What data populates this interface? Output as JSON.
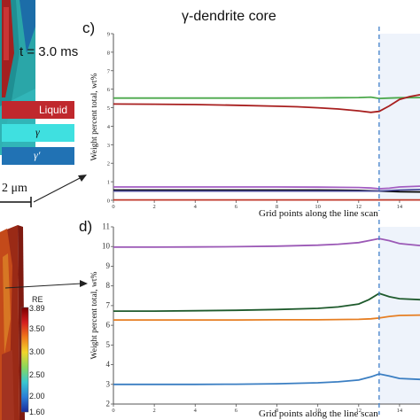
{
  "labels": {
    "title": "γ-dendrite core",
    "panel_c": "c)",
    "panel_d": "d)",
    "time": "t = 3.0 ms",
    "scale": "2 μm",
    "colorbar_title": "RE"
  },
  "legend": [
    {
      "label": "Liquid",
      "color": "#c0282d"
    },
    {
      "label": "γ",
      "color": "#3fe0e0"
    },
    {
      "label": "γ′",
      "color": "#2172b4"
    }
  ],
  "colorbar": {
    "ticks": [
      "3.89",
      "3.50",
      "3.00",
      "2.50",
      "2.00",
      "1.60"
    ],
    "colors": [
      "#7a0000",
      "#d41e1e",
      "#f07a1a",
      "#f2d52a",
      "#8ad85c",
      "#39c7d0",
      "#2b7dd6",
      "#1a2b9c"
    ]
  },
  "colors": {
    "vline": "#3f7fc9",
    "shade": "#eef3fb"
  },
  "chart_data": [
    {
      "type": "line",
      "panel": "c",
      "xlabel": "Grid points along the line scan",
      "ylabel": "Weight percent total, wt%",
      "xlim": [
        0,
        15
      ],
      "ylim": [
        0,
        9
      ],
      "xticks": [
        0,
        2,
        4,
        6,
        8,
        10,
        12,
        14
      ],
      "yticks": [
        0,
        1,
        2,
        3,
        4,
        5,
        6,
        7,
        8,
        9
      ],
      "vline_x": 13,
      "shade_from_x": 13,
      "series": [
        {
          "color": "#4aa84a",
          "x": [
            0,
            2,
            4,
            6,
            8,
            10,
            12,
            12.6,
            13,
            13.5,
            14,
            15
          ],
          "y": [
            5.52,
            5.52,
            5.52,
            5.52,
            5.52,
            5.53,
            5.55,
            5.57,
            5.5,
            5.52,
            5.54,
            5.55
          ]
        },
        {
          "color": "#a81f1f",
          "x": [
            0,
            2,
            4,
            6,
            8,
            9,
            10,
            11,
            12,
            12.6,
            13,
            13.5,
            14,
            14.5,
            15
          ],
          "y": [
            5.2,
            5.19,
            5.17,
            5.13,
            5.08,
            5.05,
            5.0,
            4.93,
            4.83,
            4.75,
            4.8,
            5.1,
            5.45,
            5.6,
            5.7
          ]
        },
        {
          "color": "#a35dc2",
          "x": [
            0,
            2,
            4,
            6,
            8,
            10,
            12,
            12.6,
            13,
            13.5,
            14,
            15
          ],
          "y": [
            0.72,
            0.72,
            0.72,
            0.72,
            0.72,
            0.71,
            0.69,
            0.66,
            0.62,
            0.65,
            0.72,
            0.76
          ]
        },
        {
          "color": "#000000",
          "x": [
            0,
            2,
            4,
            6,
            8,
            10,
            12,
            13,
            14,
            15
          ],
          "y": [
            0.55,
            0.55,
            0.55,
            0.55,
            0.55,
            0.55,
            0.53,
            0.5,
            0.46,
            0.45
          ]
        },
        {
          "color": "#4c4c9a",
          "x": [
            0,
            4,
            8,
            12,
            13,
            14,
            15
          ],
          "y": [
            0.5,
            0.5,
            0.5,
            0.5,
            0.5,
            0.55,
            0.58
          ]
        },
        {
          "color": "#c0392b",
          "x": [
            0,
            4,
            8,
            12,
            13,
            14,
            15
          ],
          "y": [
            0.02,
            0.02,
            0.02,
            0.02,
            0.02,
            0.02,
            0.02
          ]
        }
      ]
    },
    {
      "type": "line",
      "panel": "d",
      "xlabel": "Grid points along the line scan",
      "ylabel": "Weight percent total, wt%",
      "xlim": [
        0,
        15
      ],
      "ylim": [
        2,
        11
      ],
      "xticks": [
        0,
        2,
        4,
        6,
        8,
        10,
        12,
        14
      ],
      "yticks": [
        2,
        3,
        4,
        5,
        6,
        7,
        8,
        9,
        10,
        11
      ],
      "vline_x": 13,
      "shade_from_x": 13,
      "series": [
        {
          "color": "#9b59b6",
          "x": [
            0,
            2,
            4,
            6,
            8,
            10,
            11,
            12,
            12.6,
            13,
            13.5,
            14,
            15
          ],
          "y": [
            9.97,
            9.97,
            9.98,
            9.99,
            10.02,
            10.07,
            10.12,
            10.2,
            10.32,
            10.4,
            10.3,
            10.15,
            10.05
          ]
        },
        {
          "color": "#1e5a2c",
          "x": [
            0,
            2,
            4,
            6,
            8,
            10,
            11,
            12,
            12.5,
            13,
            13.5,
            14,
            15
          ],
          "y": [
            6.72,
            6.72,
            6.74,
            6.76,
            6.8,
            6.86,
            6.93,
            7.08,
            7.3,
            7.62,
            7.45,
            7.35,
            7.3
          ]
        },
        {
          "color": "#e67e22",
          "x": [
            0,
            2,
            4,
            6,
            8,
            10,
            12,
            12.6,
            13,
            13.5,
            14,
            15
          ],
          "y": [
            6.27,
            6.27,
            6.27,
            6.27,
            6.28,
            6.28,
            6.3,
            6.33,
            6.37,
            6.45,
            6.5,
            6.52
          ]
        },
        {
          "color": "#3a7ec2",
          "x": [
            0,
            2,
            4,
            6,
            8,
            10,
            11,
            12,
            12.6,
            13,
            13.5,
            14,
            15
          ],
          "y": [
            3.0,
            3.0,
            3.0,
            3.01,
            3.03,
            3.08,
            3.13,
            3.22,
            3.38,
            3.53,
            3.42,
            3.3,
            3.25
          ]
        }
      ]
    }
  ]
}
